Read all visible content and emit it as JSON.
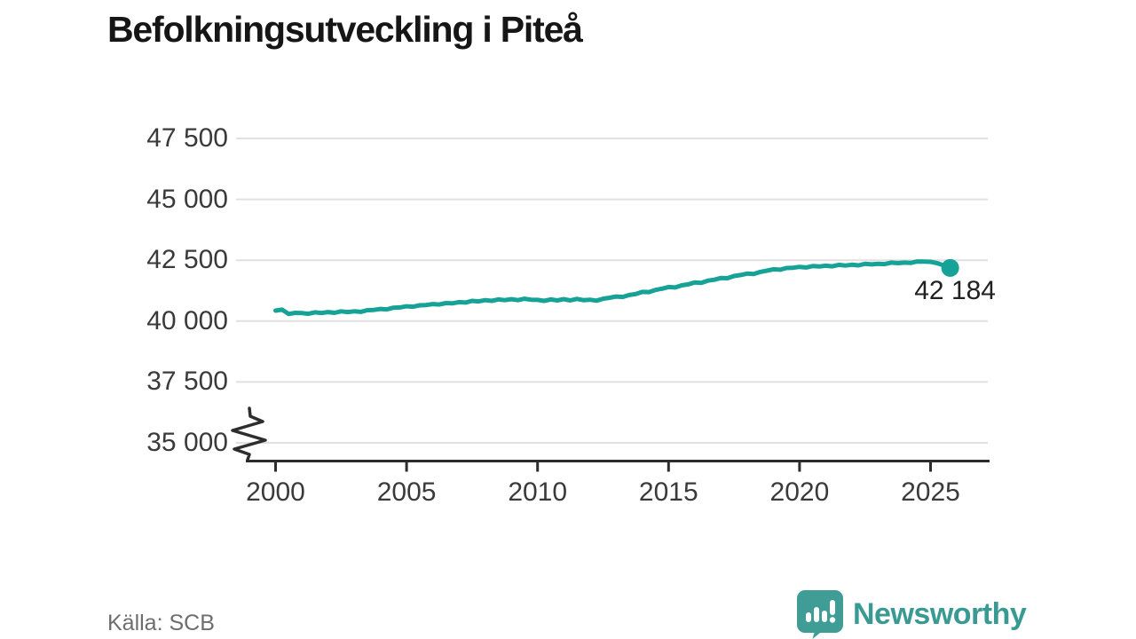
{
  "header": {
    "title": "Befolkningsutveckling i Piteå"
  },
  "footer": {
    "source": "Källa: SCB",
    "logo_text": "Newsworthy"
  },
  "colors": {
    "line": "#16A296",
    "marker": "#16A296",
    "grid": "#e0e0e0",
    "axis": "#2d2d2d",
    "logo_icon": "#3f9d96",
    "logo_text": "#389a92",
    "title_text": "#161616",
    "tick_text": "#3a3a3a",
    "annotation_text": "#212121",
    "source_text": "#6d6d6d"
  },
  "chart_data": {
    "type": "line",
    "title": "Befolkningsutveckling i Piteå",
    "source": "Källa: SCB",
    "xlabel": "",
    "ylabel": "",
    "xlim": [
      1998.9,
      2027.2
    ],
    "ylim": [
      35000,
      47500
    ],
    "axis_break": true,
    "grid": "horizontal",
    "legend_position": "none",
    "end_label": "42 184",
    "end_value": 42184,
    "y_ticks": [
      {
        "value": 47500,
        "label": "47 500"
      },
      {
        "value": 45000,
        "label": "45 000"
      },
      {
        "value": 42500,
        "label": "42 500"
      },
      {
        "value": 40000,
        "label": "40 000"
      },
      {
        "value": 37500,
        "label": "37 500"
      },
      {
        "value": 35000,
        "label": "35 000"
      }
    ],
    "x_ticks": [
      {
        "value": 2000,
        "label": "2000"
      },
      {
        "value": 2005,
        "label": "2005"
      },
      {
        "value": 2010,
        "label": "2010"
      },
      {
        "value": 2015,
        "label": "2015"
      },
      {
        "value": 2020,
        "label": "2020"
      },
      {
        "value": 2025,
        "label": "2025"
      }
    ],
    "series": [
      {
        "name": "Befolkning Piteå",
        "points": [
          [
            2000.0,
            40430
          ],
          [
            2000.25,
            40470
          ],
          [
            2000.5,
            40290
          ],
          [
            2000.75,
            40340
          ],
          [
            2001.0,
            40330
          ],
          [
            2001.25,
            40300
          ],
          [
            2001.5,
            40360
          ],
          [
            2001.75,
            40330
          ],
          [
            2002.0,
            40370
          ],
          [
            2002.25,
            40340
          ],
          [
            2002.5,
            40400
          ],
          [
            2002.75,
            40370
          ],
          [
            2003.0,
            40400
          ],
          [
            2003.25,
            40380
          ],
          [
            2003.5,
            40450
          ],
          [
            2003.75,
            40460
          ],
          [
            2004.0,
            40500
          ],
          [
            2004.25,
            40480
          ],
          [
            2004.5,
            40550
          ],
          [
            2004.75,
            40560
          ],
          [
            2005.0,
            40610
          ],
          [
            2005.25,
            40590
          ],
          [
            2005.5,
            40650
          ],
          [
            2005.75,
            40660
          ],
          [
            2006.0,
            40700
          ],
          [
            2006.25,
            40680
          ],
          [
            2006.5,
            40740
          ],
          [
            2006.75,
            40730
          ],
          [
            2007.0,
            40780
          ],
          [
            2007.25,
            40760
          ],
          [
            2007.5,
            40830
          ],
          [
            2007.75,
            40810
          ],
          [
            2008.0,
            40860
          ],
          [
            2008.25,
            40830
          ],
          [
            2008.5,
            40890
          ],
          [
            2008.75,
            40860
          ],
          [
            2009.0,
            40900
          ],
          [
            2009.25,
            40860
          ],
          [
            2009.5,
            40920
          ],
          [
            2009.75,
            40880
          ],
          [
            2010.0,
            40870
          ],
          [
            2010.25,
            40830
          ],
          [
            2010.5,
            40890
          ],
          [
            2010.75,
            40850
          ],
          [
            2011.0,
            40900
          ],
          [
            2011.25,
            40850
          ],
          [
            2011.5,
            40910
          ],
          [
            2011.75,
            40860
          ],
          [
            2012.0,
            40880
          ],
          [
            2012.25,
            40840
          ],
          [
            2012.5,
            40920
          ],
          [
            2012.75,
            40960
          ],
          [
            2013.0,
            41010
          ],
          [
            2013.25,
            40990
          ],
          [
            2013.5,
            41070
          ],
          [
            2013.75,
            41110
          ],
          [
            2014.0,
            41200
          ],
          [
            2014.25,
            41190
          ],
          [
            2014.5,
            41280
          ],
          [
            2014.75,
            41330
          ],
          [
            2015.0,
            41400
          ],
          [
            2015.25,
            41380
          ],
          [
            2015.5,
            41470
          ],
          [
            2015.75,
            41510
          ],
          [
            2016.0,
            41585
          ],
          [
            2016.25,
            41570
          ],
          [
            2016.5,
            41660
          ],
          [
            2016.75,
            41700
          ],
          [
            2017.0,
            41770
          ],
          [
            2017.25,
            41760
          ],
          [
            2017.5,
            41850
          ],
          [
            2017.75,
            41890
          ],
          [
            2018.0,
            41950
          ],
          [
            2018.25,
            41930
          ],
          [
            2018.5,
            42020
          ],
          [
            2018.75,
            42070
          ],
          [
            2019.0,
            42130
          ],
          [
            2019.25,
            42110
          ],
          [
            2019.5,
            42180
          ],
          [
            2019.75,
            42190
          ],
          [
            2020.0,
            42225
          ],
          [
            2020.25,
            42200
          ],
          [
            2020.5,
            42260
          ],
          [
            2020.75,
            42240
          ],
          [
            2021.0,
            42275
          ],
          [
            2021.25,
            42250
          ],
          [
            2021.5,
            42310
          ],
          [
            2021.75,
            42280
          ],
          [
            2022.0,
            42315
          ],
          [
            2022.25,
            42290
          ],
          [
            2022.5,
            42350
          ],
          [
            2022.75,
            42330
          ],
          [
            2023.0,
            42350
          ],
          [
            2023.25,
            42340
          ],
          [
            2023.5,
            42400
          ],
          [
            2023.75,
            42380
          ],
          [
            2024.0,
            42400
          ],
          [
            2024.25,
            42390
          ],
          [
            2024.5,
            42450
          ],
          [
            2024.75,
            42440
          ],
          [
            2025.0,
            42435
          ],
          [
            2025.25,
            42380
          ],
          [
            2025.5,
            42290
          ],
          [
            2025.75,
            42184
          ]
        ]
      }
    ]
  }
}
